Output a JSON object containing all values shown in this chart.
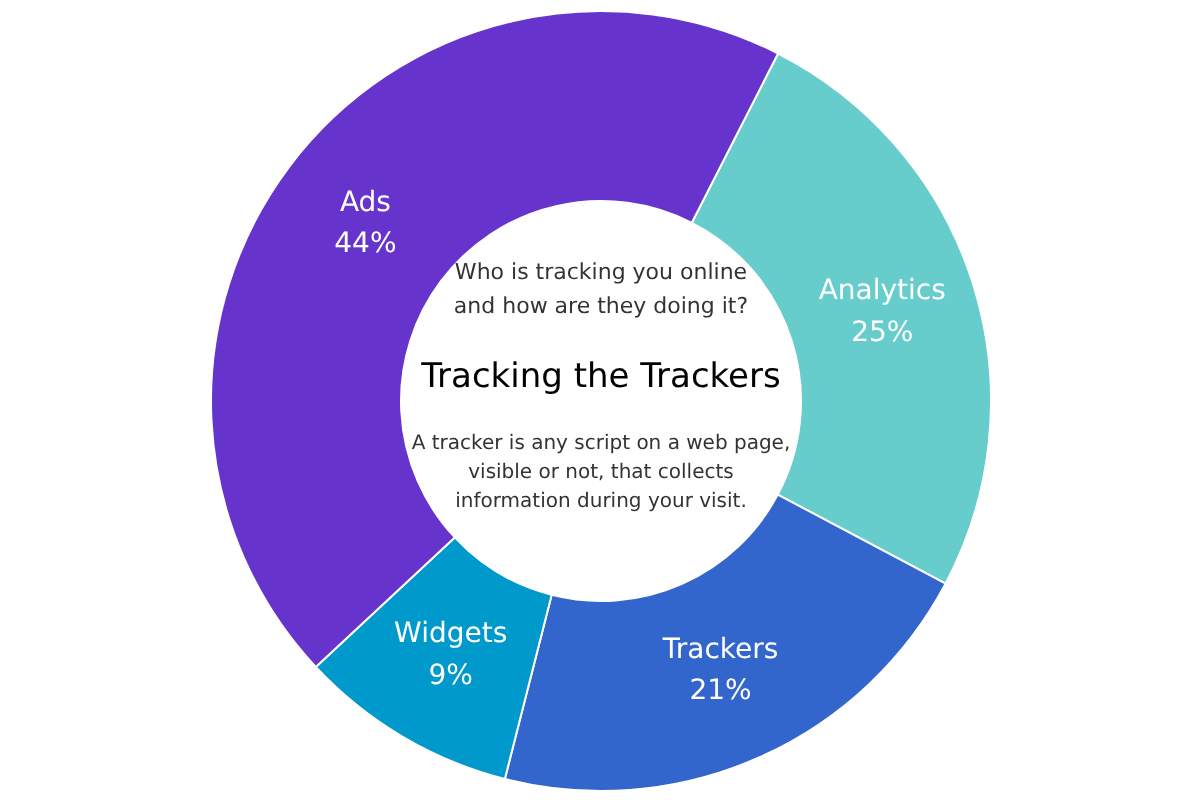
{
  "chart_data": {
    "type": "donut",
    "title": "Tracking the Trackers",
    "subtitle": "Who is tracking you online and how are they doing it?",
    "annotations": [
      "A tracker is any script on a web page, visible or not, that collects information during your visit."
    ],
    "categories": [
      "Analytics",
      "Trackers",
      "Widgets",
      "Ads"
    ],
    "values": [
      25,
      21,
      9,
      44
    ],
    "value_labels": [
      "25%",
      "21%",
      "9%",
      "44%"
    ],
    "colors": [
      "#66cccc",
      "#3366cc",
      "#0099cc",
      "#6633cc"
    ]
  }
}
